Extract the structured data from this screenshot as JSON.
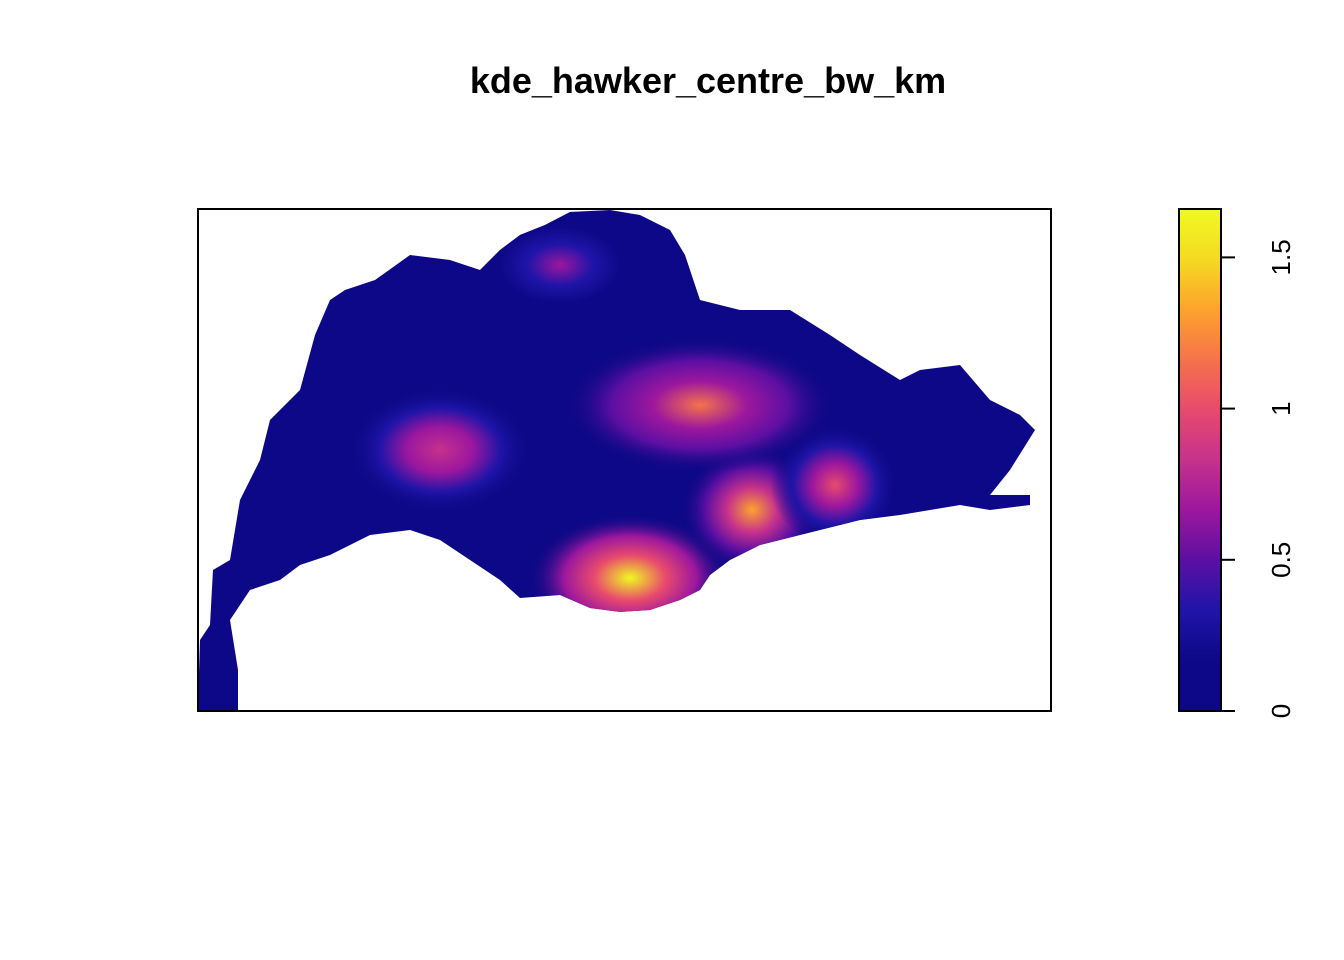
{
  "chart_data": {
    "type": "heatmap",
    "title": "kde_hawker_centre_bw_km",
    "xlabel": "",
    "ylabel": "",
    "axes_shown": false,
    "legend": {
      "placement": "right",
      "range": [
        0,
        1.66
      ],
      "ticks": [
        0,
        0.5,
        1,
        1.5
      ],
      "tick_labels": [
        "0",
        "0.5",
        "1",
        "1.5"
      ],
      "colors": [
        "#0D0887",
        "#0D0887",
        "#1F14A8",
        "#5C0FA3",
        "#9C179E",
        "#C6318C",
        "#E84A6D",
        "#F5734A",
        "#FDA32C",
        "#F5DA22",
        "#F0F921"
      ]
    },
    "hotspots": [
      {
        "label": "south-central",
        "value": 1.6
      },
      {
        "label": "east-central",
        "value": 1.3
      },
      {
        "label": "central-north",
        "value": 1.1
      },
      {
        "label": "west",
        "value": 0.9
      },
      {
        "label": "east",
        "value": 1.0
      },
      {
        "label": "north",
        "value": 0.6
      }
    ]
  }
}
